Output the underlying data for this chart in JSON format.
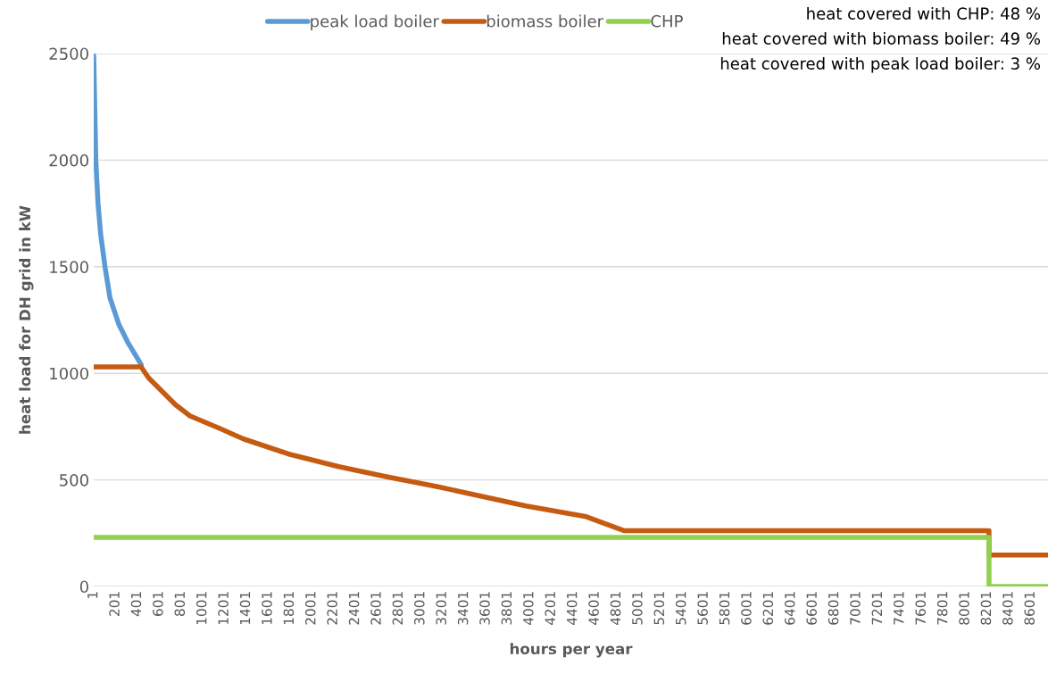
{
  "chart_data": {
    "type": "line",
    "xlabel": "hours per year",
    "ylabel": "heat load for DH grid in kW",
    "annotations": [
      "heat covered with CHP: 48 %",
      "heat covered with biomass boiler: 49 %",
      "heat covered with peak load boiler: 3 %"
    ],
    "series": [
      {
        "name": "peak load boiler",
        "color": "#5b9bd5",
        "x": [
          1,
          20,
          40,
          65,
          106,
          150,
          232,
          313,
          436
        ],
        "values": [
          2490,
          2000,
          1800,
          1650,
          1495,
          1354,
          1229,
          1146,
          1041
        ]
      },
      {
        "name": "biomass boiler",
        "color": "#c55a11",
        "x": [
          1,
          436,
          504,
          750,
          886,
          1159,
          1377,
          1786,
          2250,
          2686,
          3149,
          3967,
          4511,
          4866,
          8218,
          8219,
          8760
        ],
        "values": [
          1030,
          1030,
          979,
          853,
          800,
          741,
          692,
          622,
          562,
          515,
          469,
          378,
          329,
          262,
          262,
          148,
          148
        ]
      },
      {
        "name": "CHP",
        "color": "#92d050",
        "x": [
          1,
          8218,
          8219,
          8760
        ],
        "values": [
          230,
          230,
          0,
          0
        ]
      }
    ],
    "xlim": [
      1,
      8760
    ],
    "xticks": [
      1,
      201,
      401,
      601,
      801,
      1001,
      1201,
      1401,
      1601,
      1801,
      2001,
      2201,
      2401,
      2601,
      2801,
      3001,
      3201,
      3401,
      3601,
      3801,
      4001,
      4201,
      4401,
      4601,
      4801,
      5001,
      5201,
      5401,
      5601,
      5801,
      6001,
      6201,
      6401,
      6601,
      6801,
      7001,
      7201,
      7401,
      7601,
      7801,
      8001,
      8201,
      8401,
      8601
    ],
    "ylim": [
      0,
      2500
    ],
    "yticks": [
      0,
      500,
      1000,
      1500,
      2000,
      2500
    ],
    "grid": "y",
    "legend": "top",
    "marker": "none",
    "line_style": "solid"
  }
}
